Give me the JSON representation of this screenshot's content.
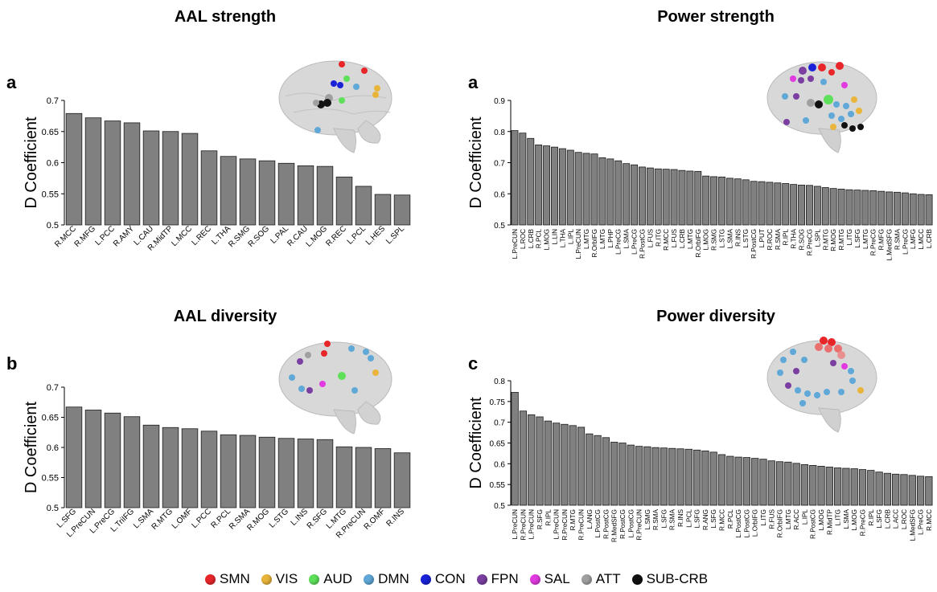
{
  "panels": [
    {
      "title": "AAL strength",
      "letter": "a"
    },
    {
      "title": "Power strength",
      "letter": "a"
    },
    {
      "title": "AAL diversity",
      "letter": "b"
    },
    {
      "title": "Power diversity",
      "letter": "c"
    }
  ],
  "colors": {
    "bar_fill": "#808080",
    "bar_stroke": "#1a1a1a",
    "SMN": "#e8262a",
    "VIS": "#e8b43a",
    "AUD": "#5ee05a",
    "DMN": "#5fa8d8",
    "CON": "#1a22d8",
    "FPN": "#7a3fa0",
    "SAL": "#e03ae0",
    "ATT": "#a0a0a0",
    "SUB-CRB": "#111111"
  },
  "legend": [
    {
      "label": "SMN",
      "color": "#e8262a"
    },
    {
      "label": "VIS",
      "color": "#e8b43a"
    },
    {
      "label": "AUD",
      "color": "#5ee05a"
    },
    {
      "label": "DMN",
      "color": "#5fa8d8"
    },
    {
      "label": "CON",
      "color": "#1a22d8"
    },
    {
      "label": "FPN",
      "color": "#7a3fa0"
    },
    {
      "label": "SAL",
      "color": "#e03ae0"
    },
    {
      "label": "ATT",
      "color": "#a0a0a0"
    },
    {
      "label": "SUB-CRB",
      "color": "#111111"
    }
  ],
  "chart_data": [
    {
      "type": "bar",
      "title": "AAL strength",
      "ylabel": "D Coefficient",
      "ylim": [
        0.5,
        0.7
      ],
      "yticks": [
        "0.5",
        "0.55",
        "0.6",
        "0.65",
        "0.7"
      ],
      "categories": [
        "R.MCC",
        "R.MFG",
        "L.PCC",
        "R.AMY",
        "L.CAU",
        "R.MidTP",
        "L.MCC",
        "L.REC",
        "L.THA",
        "R.SMG",
        "R.SOG",
        "L.PAL",
        "R.CAU",
        "L.MOG",
        "R.REC",
        "L.PCL",
        "L.HES",
        "L.SPL"
      ],
      "values": [
        0.679,
        0.672,
        0.667,
        0.664,
        0.651,
        0.65,
        0.647,
        0.619,
        0.61,
        0.606,
        0.603,
        0.599,
        0.595,
        0.594,
        0.577,
        0.562,
        0.549,
        0.548
      ]
    },
    {
      "type": "bar",
      "title": "Power strength",
      "ylabel": "D Coefficient",
      "ylim": [
        0.5,
        0.9
      ],
      "yticks": [
        "0.5",
        "0.6",
        "0.7",
        "0.8",
        "0.9"
      ],
      "categories": [
        "L.PreCUN",
        "L.ROC",
        "L.CRB",
        "R.PCL",
        "L.MOG",
        "L.LIN",
        "L.THA",
        "L.IPL",
        "L.PreCUN",
        "L.MTG",
        "R.OrbIFG",
        "L.MTG",
        "L.PHP",
        "L.PreCG",
        "L.SMA",
        "L.PreCG",
        "R.PostCG",
        "L.FUS",
        "R.ITG",
        "R.MCC",
        "L.FUS",
        "L.CRB",
        "L.MTG",
        "R.OrbIFG",
        "L.MOG",
        "R.SMG",
        "L.STG",
        "L.SMA",
        "R.INS",
        "L.STG",
        "R.PostCG",
        "L.PUT",
        "R.ROC",
        "R.SMA",
        "R.IPL",
        "R.THA",
        "R.SOG",
        "R.PreCG",
        "L.SPL",
        "R.MTG",
        "R.MOG",
        "R.MTG",
        "L.ITG",
        "L.SFG",
        "L.MTG",
        "R.PreCG",
        "R.MFG",
        "L.MedSFG",
        "R.SMA",
        "L.PreCG",
        "L.MFG",
        "L.MCC",
        "L.CRB"
      ],
      "values": [
        0.803,
        0.795,
        0.778,
        0.757,
        0.754,
        0.75,
        0.745,
        0.74,
        0.733,
        0.73,
        0.728,
        0.716,
        0.712,
        0.706,
        0.697,
        0.693,
        0.686,
        0.683,
        0.68,
        0.679,
        0.678,
        0.675,
        0.673,
        0.672,
        0.657,
        0.655,
        0.654,
        0.65,
        0.648,
        0.645,
        0.64,
        0.639,
        0.637,
        0.635,
        0.633,
        0.63,
        0.628,
        0.627,
        0.624,
        0.62,
        0.617,
        0.615,
        0.613,
        0.612,
        0.611,
        0.61,
        0.608,
        0.606,
        0.605,
        0.603,
        0.6,
        0.598,
        0.597
      ]
    },
    {
      "type": "bar",
      "title": "AAL diversity",
      "ylabel": "D Coefficient",
      "ylim": [
        0.5,
        0.7
      ],
      "yticks": [
        "0.5",
        "0.55",
        "0.6",
        "0.65",
        "0.7"
      ],
      "categories": [
        "L.SFG",
        "L.PreCUN",
        "L.PreCG",
        "L.TriIFG",
        "L.SMA",
        "R.MTG",
        "L.OMF",
        "L.PCC",
        "R.PCL",
        "R.SMA",
        "R.MOG",
        "L.STG",
        "L.INS",
        "R.SFG",
        "L.MTG",
        "R.PreCUN",
        "R.OMF",
        "R.INS"
      ],
      "values": [
        0.667,
        0.662,
        0.657,
        0.651,
        0.637,
        0.633,
        0.631,
        0.627,
        0.621,
        0.62,
        0.617,
        0.615,
        0.614,
        0.613,
        0.601,
        0.6,
        0.598,
        0.591
      ]
    },
    {
      "type": "bar",
      "title": "Power diversity",
      "ylabel": "D Coefficient",
      "ylim": [
        0.5,
        0.8
      ],
      "yticks": [
        "0.5",
        "0.55",
        "0.6",
        "0.65",
        "0.7",
        "0.75",
        "0.8"
      ],
      "categories": [
        "L.PreCUN",
        "R.PreCUN",
        "L.PreCUN",
        "R.SFG",
        "R.IPL",
        "L.PreCUN",
        "R.PreCUN",
        "R.MTG",
        "R.PreCUN",
        "L.ANG",
        "L.PostCG",
        "R.PostCG",
        "R.MedSFG",
        "R.PostCG",
        "L.PostCG",
        "R.PreCUN",
        "L.SMG",
        "R.SMA",
        "L.SFG",
        "R.SMA",
        "R.INS",
        "L.PCL",
        "L.SFG",
        "R.ANG",
        "L.SFG",
        "R.MCC",
        "R.PCL",
        "L.PostCG",
        "L.PostCG",
        "L.OrbIFG",
        "L.ITG",
        "R.FUS",
        "R.OrbIFG",
        "L.MTG",
        "R.ACC",
        "L.IPL",
        "R.PostCG",
        "L.MOG",
        "R.MidTP",
        "L.ITG",
        "L.SMA",
        "L.MOG",
        "R.PreCG",
        "R.IPL",
        "L.SFG",
        "L.CRB",
        "L.ACC",
        "L.ROC",
        "L.MedSFG",
        "L.PreCG",
        "R.MCC"
      ],
      "values": [
        0.772,
        0.727,
        0.718,
        0.713,
        0.703,
        0.698,
        0.695,
        0.692,
        0.688,
        0.672,
        0.668,
        0.663,
        0.652,
        0.65,
        0.645,
        0.642,
        0.641,
        0.639,
        0.638,
        0.637,
        0.636,
        0.635,
        0.633,
        0.631,
        0.628,
        0.622,
        0.618,
        0.616,
        0.615,
        0.613,
        0.611,
        0.607,
        0.605,
        0.604,
        0.601,
        0.598,
        0.596,
        0.594,
        0.592,
        0.59,
        0.589,
        0.588,
        0.586,
        0.584,
        0.58,
        0.577,
        0.575,
        0.574,
        0.572,
        0.57,
        0.569
      ]
    }
  ]
}
